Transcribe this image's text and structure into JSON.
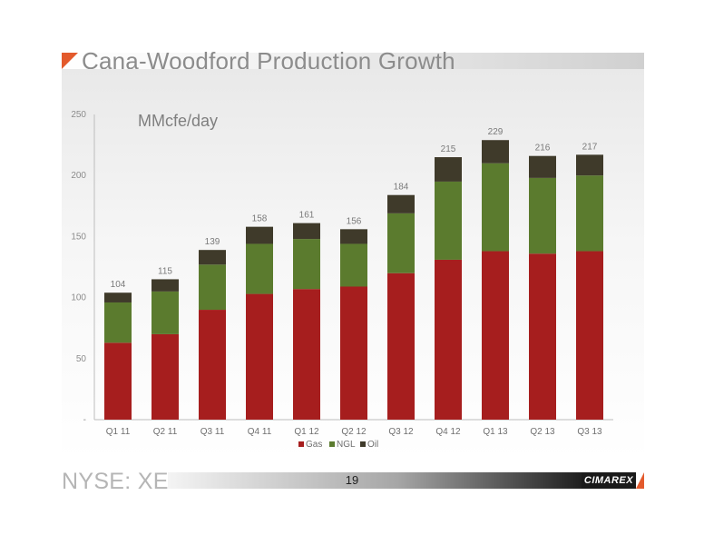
{
  "title": "Cana-Woodford Production Growth",
  "unit_label": "MMcfe/day",
  "footer": {
    "ticker": "NYSE: XEC",
    "page_number": "19",
    "brand": "CIMAREX"
  },
  "colors": {
    "gas": "#a61e1e",
    "ngl": "#5b7b2e",
    "oil": "#3f3a2a",
    "accent": "#e35a2c"
  },
  "chart_data": {
    "type": "bar",
    "stacked": true,
    "title": "Cana-Woodford Production Growth",
    "ylabel": "MMcfe/day",
    "xlabel": "",
    "ylim": [
      0,
      250
    ],
    "yticks": [
      "-",
      "50",
      "100",
      "150",
      "200",
      "250"
    ],
    "ytick_values": [
      0,
      50,
      100,
      150,
      200,
      250
    ],
    "categories": [
      "Q1 11",
      "Q2 11",
      "Q3 11",
      "Q4 11",
      "Q1 12",
      "Q2 12",
      "Q3 12",
      "Q4 12",
      "Q1 13",
      "Q2 13",
      "Q3 13"
    ],
    "series": [
      {
        "name": "Gas",
        "color": "#a61e1e",
        "values": [
          63,
          70,
          90,
          103,
          107,
          109,
          120,
          131,
          138,
          136,
          138
        ]
      },
      {
        "name": "NGL",
        "color": "#5b7b2e",
        "values": [
          33,
          35,
          37,
          41,
          41,
          35,
          49,
          64,
          72,
          62,
          62
        ]
      },
      {
        "name": "Oil",
        "color": "#3f3a2a",
        "values": [
          8,
          10,
          12,
          14,
          13,
          12,
          15,
          20,
          19,
          18,
          17
        ]
      }
    ],
    "totals": [
      104,
      115,
      139,
      158,
      161,
      156,
      184,
      215,
      229,
      216,
      217
    ],
    "legend": {
      "position": "bottom",
      "entries": [
        "Gas",
        "NGL",
        "Oil"
      ]
    },
    "grid": false
  }
}
